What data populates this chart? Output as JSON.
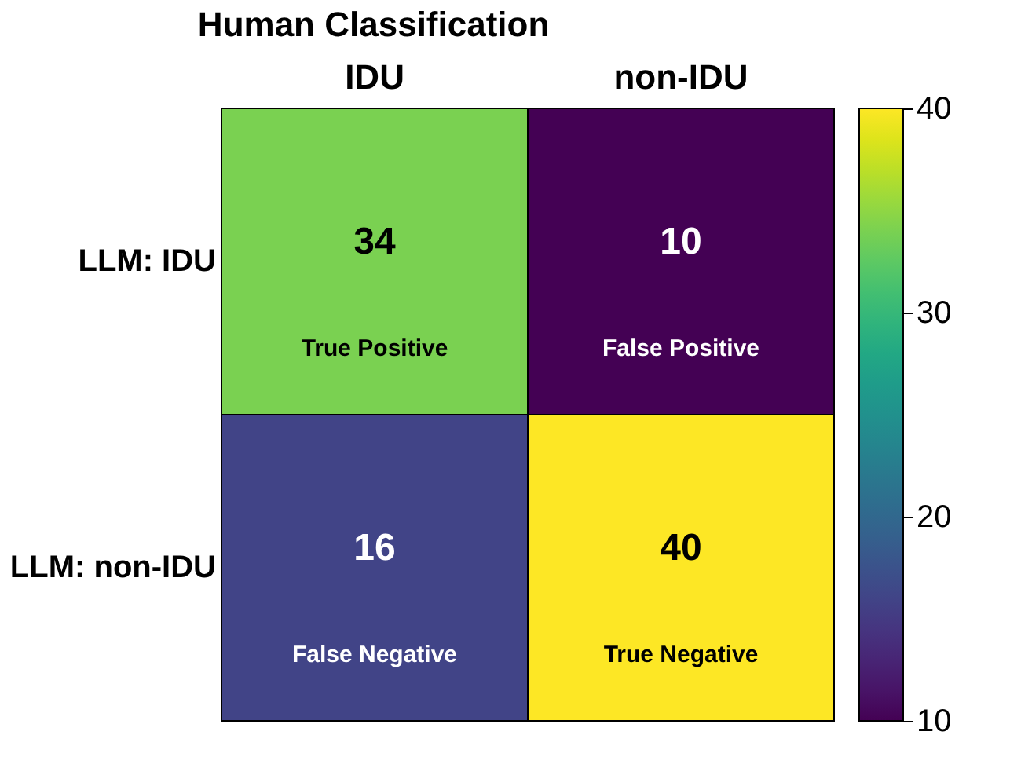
{
  "chart_data": {
    "type": "heatmap",
    "title": "Human Classification",
    "categories": [
      "IDU",
      "non-IDU"
    ],
    "y_categories": [
      "LLM: IDU",
      "LLM: non-IDU"
    ],
    "cells": [
      [
        34,
        10
      ],
      [
        16,
        40
      ]
    ],
    "clim": [
      10,
      40
    ],
    "cticks": [
      10,
      20,
      30,
      40
    ],
    "annotations": [
      "True Positive",
      "False Positive",
      "False Negative",
      "True Negative"
    ],
    "data_labels": true
  }
}
